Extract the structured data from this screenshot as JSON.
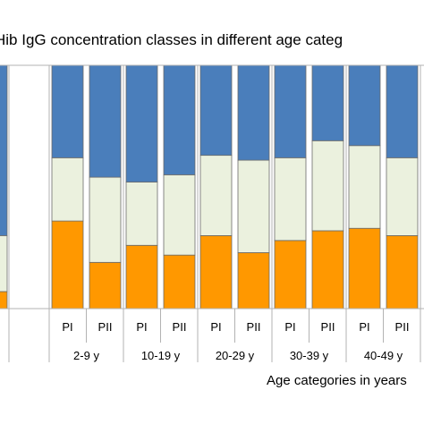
{
  "chart_data": {
    "type": "bar",
    "stacked": true,
    "normalized": true,
    "title": "Hib IgG concentration classes in different age categ",
    "xlabel": "Age categories in years",
    "ylabel": "",
    "ylim": [
      0,
      100
    ],
    "grid": false,
    "legend": "none",
    "colors": {
      "bottom": "#ff9800",
      "middle": "#ebf1de",
      "top": "#4a7ebb"
    },
    "partial_bars": [
      {
        "label": "",
        "bottom": 7,
        "middle": 23,
        "top": 70
      }
    ],
    "groups": [
      {
        "label": "2-9 y",
        "bars": [
          {
            "label": "PI",
            "bottom": 36,
            "middle": 26,
            "top": 38
          },
          {
            "label": "PII",
            "bottom": 19,
            "middle": 35,
            "top": 46
          }
        ]
      },
      {
        "label": "10-19 y",
        "bars": [
          {
            "label": "PI",
            "bottom": 26,
            "middle": 26,
            "top": 48
          },
          {
            "label": "PII",
            "bottom": 22,
            "middle": 33,
            "top": 45
          }
        ]
      },
      {
        "label": "20-29 y",
        "bars": [
          {
            "label": "PI",
            "bottom": 30,
            "middle": 33,
            "top": 37
          },
          {
            "label": "PII",
            "bottom": 23,
            "middle": 38,
            "top": 39
          }
        ]
      },
      {
        "label": "30-39 y",
        "bars": [
          {
            "label": "PI",
            "bottom": 28,
            "middle": 34,
            "top": 38
          },
          {
            "label": "PII",
            "bottom": 32,
            "middle": 37,
            "top": 31
          }
        ]
      },
      {
        "label": "40-49 y",
        "bars": [
          {
            "label": "PI",
            "bottom": 33,
            "middle": 34,
            "top": 33
          },
          {
            "label": "PII",
            "bottom": 30,
            "middle": 32,
            "top": 38
          }
        ]
      }
    ]
  }
}
